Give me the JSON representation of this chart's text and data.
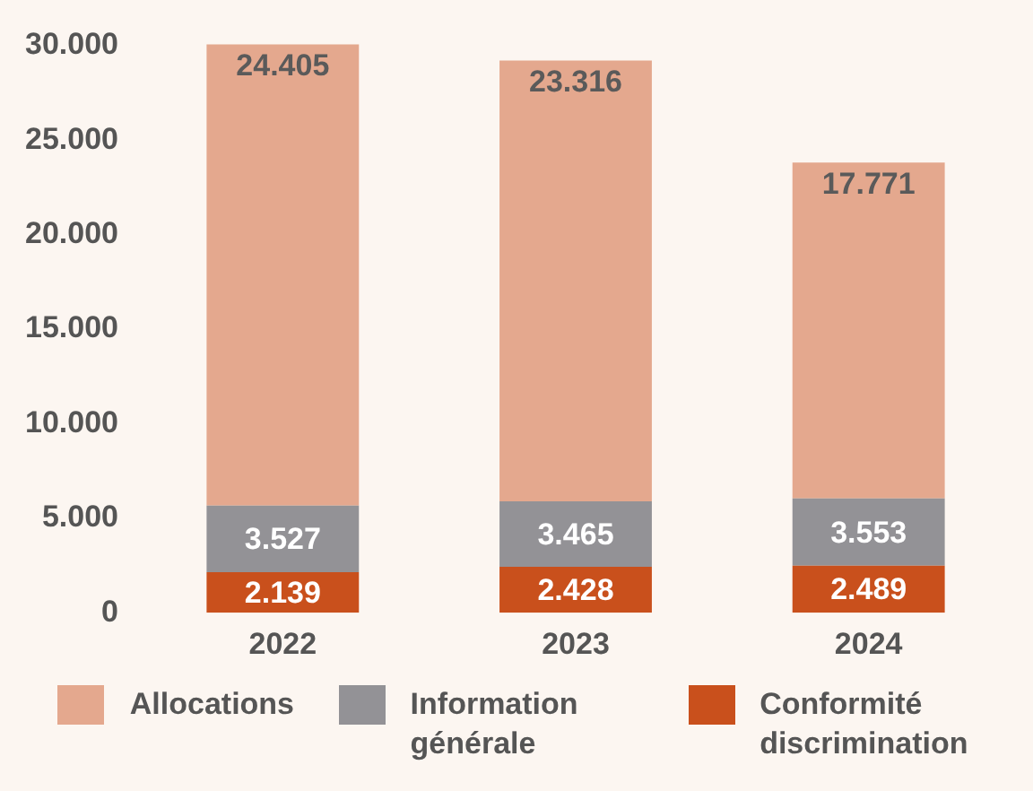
{
  "chart_data": {
    "type": "bar",
    "stacked": true,
    "categories": [
      "2022",
      "2023",
      "2024"
    ],
    "series": [
      {
        "name": "Conformité discrimination",
        "color": "#c9501c",
        "values": [
          2139,
          2428,
          2489
        ],
        "value_labels": [
          "2.139",
          "2.428",
          "2.489"
        ]
      },
      {
        "name": "Information générale",
        "color": "#939296",
        "values": [
          3527,
          3465,
          3553
        ],
        "value_labels": [
          "3.527",
          "3.465",
          "3.553"
        ]
      },
      {
        "name": "Allocations",
        "color": "#e4a88e",
        "values": [
          24405,
          23316,
          17771
        ],
        "value_labels": [
          "24.405",
          "23.316",
          "17.771"
        ]
      }
    ],
    "ylim": [
      0,
      30500
    ],
    "yticks": [
      {
        "value": 0,
        "label": "0"
      },
      {
        "value": 5000,
        "label": "5.000"
      },
      {
        "value": 10000,
        "label": "10.000"
      },
      {
        "value": 15000,
        "label": "15.000"
      },
      {
        "value": 20000,
        "label": "20.000"
      },
      {
        "value": 25000,
        "label": "25.000"
      },
      {
        "value": 30000,
        "label": "30.000"
      }
    ],
    "grid": false,
    "legend": "bottom"
  }
}
